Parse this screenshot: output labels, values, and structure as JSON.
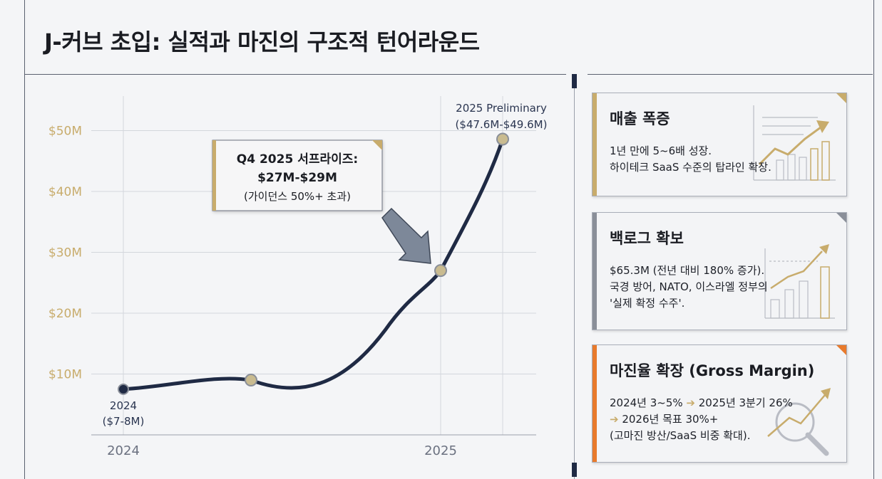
{
  "title": "J-커브 초입: 실적과 마진의 구조적 턴어라운드",
  "colors": {
    "navy": "#1f2a44",
    "gold": "#c8ac6c",
    "gray": "#8a8f99",
    "orange": "#e87a2c"
  },
  "chart_data": {
    "type": "line",
    "title": "",
    "xlabel": "",
    "ylabel": "",
    "x_tick_labels": [
      "2024",
      "2025"
    ],
    "y_tick_labels": [
      "$10M",
      "$20M",
      "$30M",
      "$40M",
      "$50M"
    ],
    "ylim": [
      0,
      55
    ],
    "grid": true,
    "series": [
      {
        "points": [
          {
            "x": "2024",
            "y": 7.5
          },
          {
            "x": "2024 mid",
            "y": 9
          },
          {
            "x": "2025",
            "y": 27
          },
          {
            "x": "2025 Preliminary",
            "y": 48.6
          }
        ]
      }
    ],
    "annotations": {
      "start_label": [
        "2024",
        "($7-8M)"
      ],
      "end_label": [
        "2025 Preliminary",
        "($47.6M-$49.6M)"
      ],
      "callout_title": "Q4 2025 서프라이즈:",
      "callout_value": "$27M-$29M",
      "callout_note": "(가이던스 50%+ 초과)"
    }
  },
  "cards": [
    {
      "title": "매출 폭증",
      "lines": [
        "1년 만에 5~6배 성장.",
        "하이테크 SaaS 수준의 탑라인 확장."
      ],
      "icon": "growth-chart-icon"
    },
    {
      "title": "백로그 확보",
      "lines": [
        "$65.3M (전년 대비 180% 증가).",
        "국경 방어, NATO, 이스라엘 정부의",
        "'실제 확정 수주'."
      ],
      "icon": "bar-chart-icon"
    },
    {
      "title": "마진율 확장 (Gross Margin)",
      "lines_rich": [
        [
          "2024년 3~5% ",
          "➔",
          " 2025년 3분기 26%"
        ],
        [
          "",
          "➔",
          " 2026년 목표 30%+"
        ],
        [
          "(고마진 방산/SaaS 비중 확대).",
          "",
          ""
        ]
      ],
      "icon": "magnifier-icon"
    }
  ]
}
